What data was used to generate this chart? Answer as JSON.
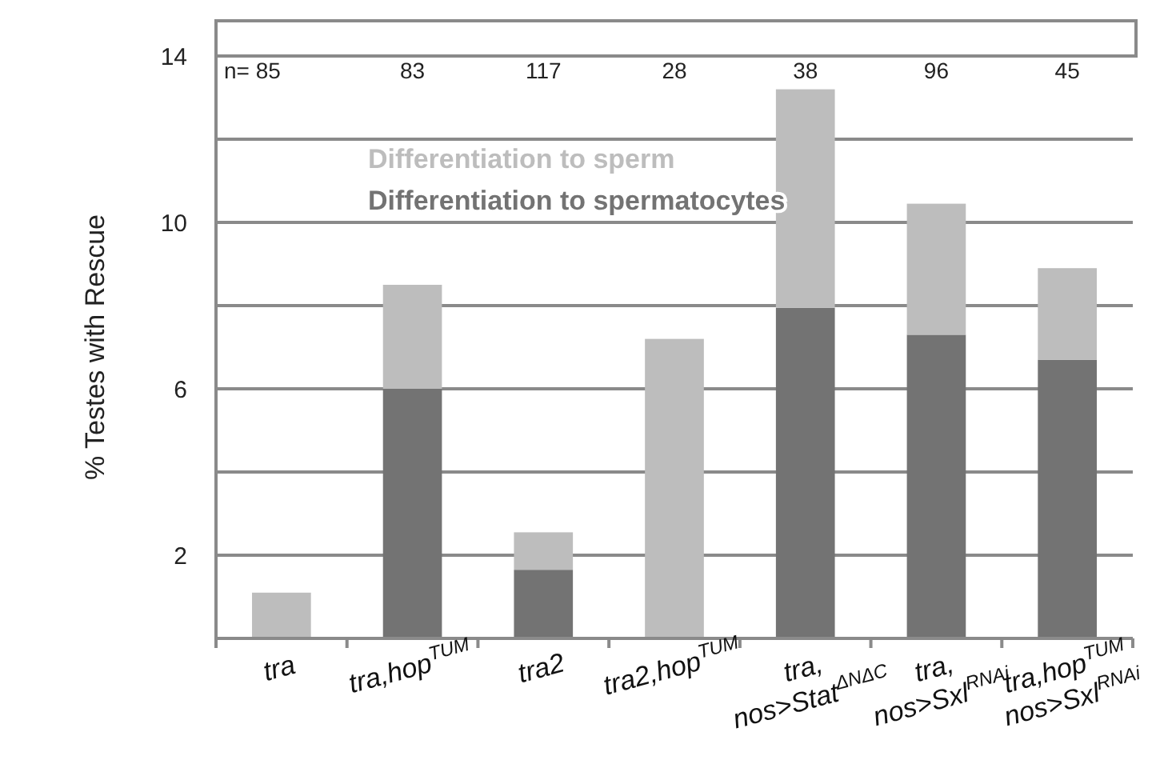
{
  "chart_data": {
    "type": "bar",
    "stacked": true,
    "ylabel": "% Testes with Rescue",
    "categories": [
      "tra",
      "tra,hop$^{TUM}$",
      "tra2",
      "tra2,hop$^{TUM}$",
      "tra,\nnos>Stat$^{ΔNΔC}$",
      "tra,\nnos>Sxl$^{RNAi}$",
      "tra,hop$^{TUM}$\nnos>Sxl$^{RNAi}$"
    ],
    "series": [
      {
        "name": "Differentiation to spermatocytes",
        "color": "#737373",
        "values": [
          0,
          6.0,
          1.65,
          0,
          7.95,
          7.3,
          6.7
        ]
      },
      {
        "name": "Differentiation to sperm",
        "color": "#bdbdbd",
        "values": [
          1.1,
          2.5,
          0.9,
          7.2,
          5.25,
          3.15,
          2.2
        ]
      }
    ],
    "ylim": [
      0,
      14
    ],
    "yticks": [
      2,
      {
        "value": 4,
        "label": null
      },
      6,
      {
        "value": 8,
        "label": null
      },
      10,
      {
        "value": 12,
        "label": null
      },
      14
    ],
    "grid": "y",
    "legend": "top left",
    "annotations": [
      "n= 85",
      "83",
      "117",
      "28",
      "38",
      "96",
      "45"
    ]
  }
}
